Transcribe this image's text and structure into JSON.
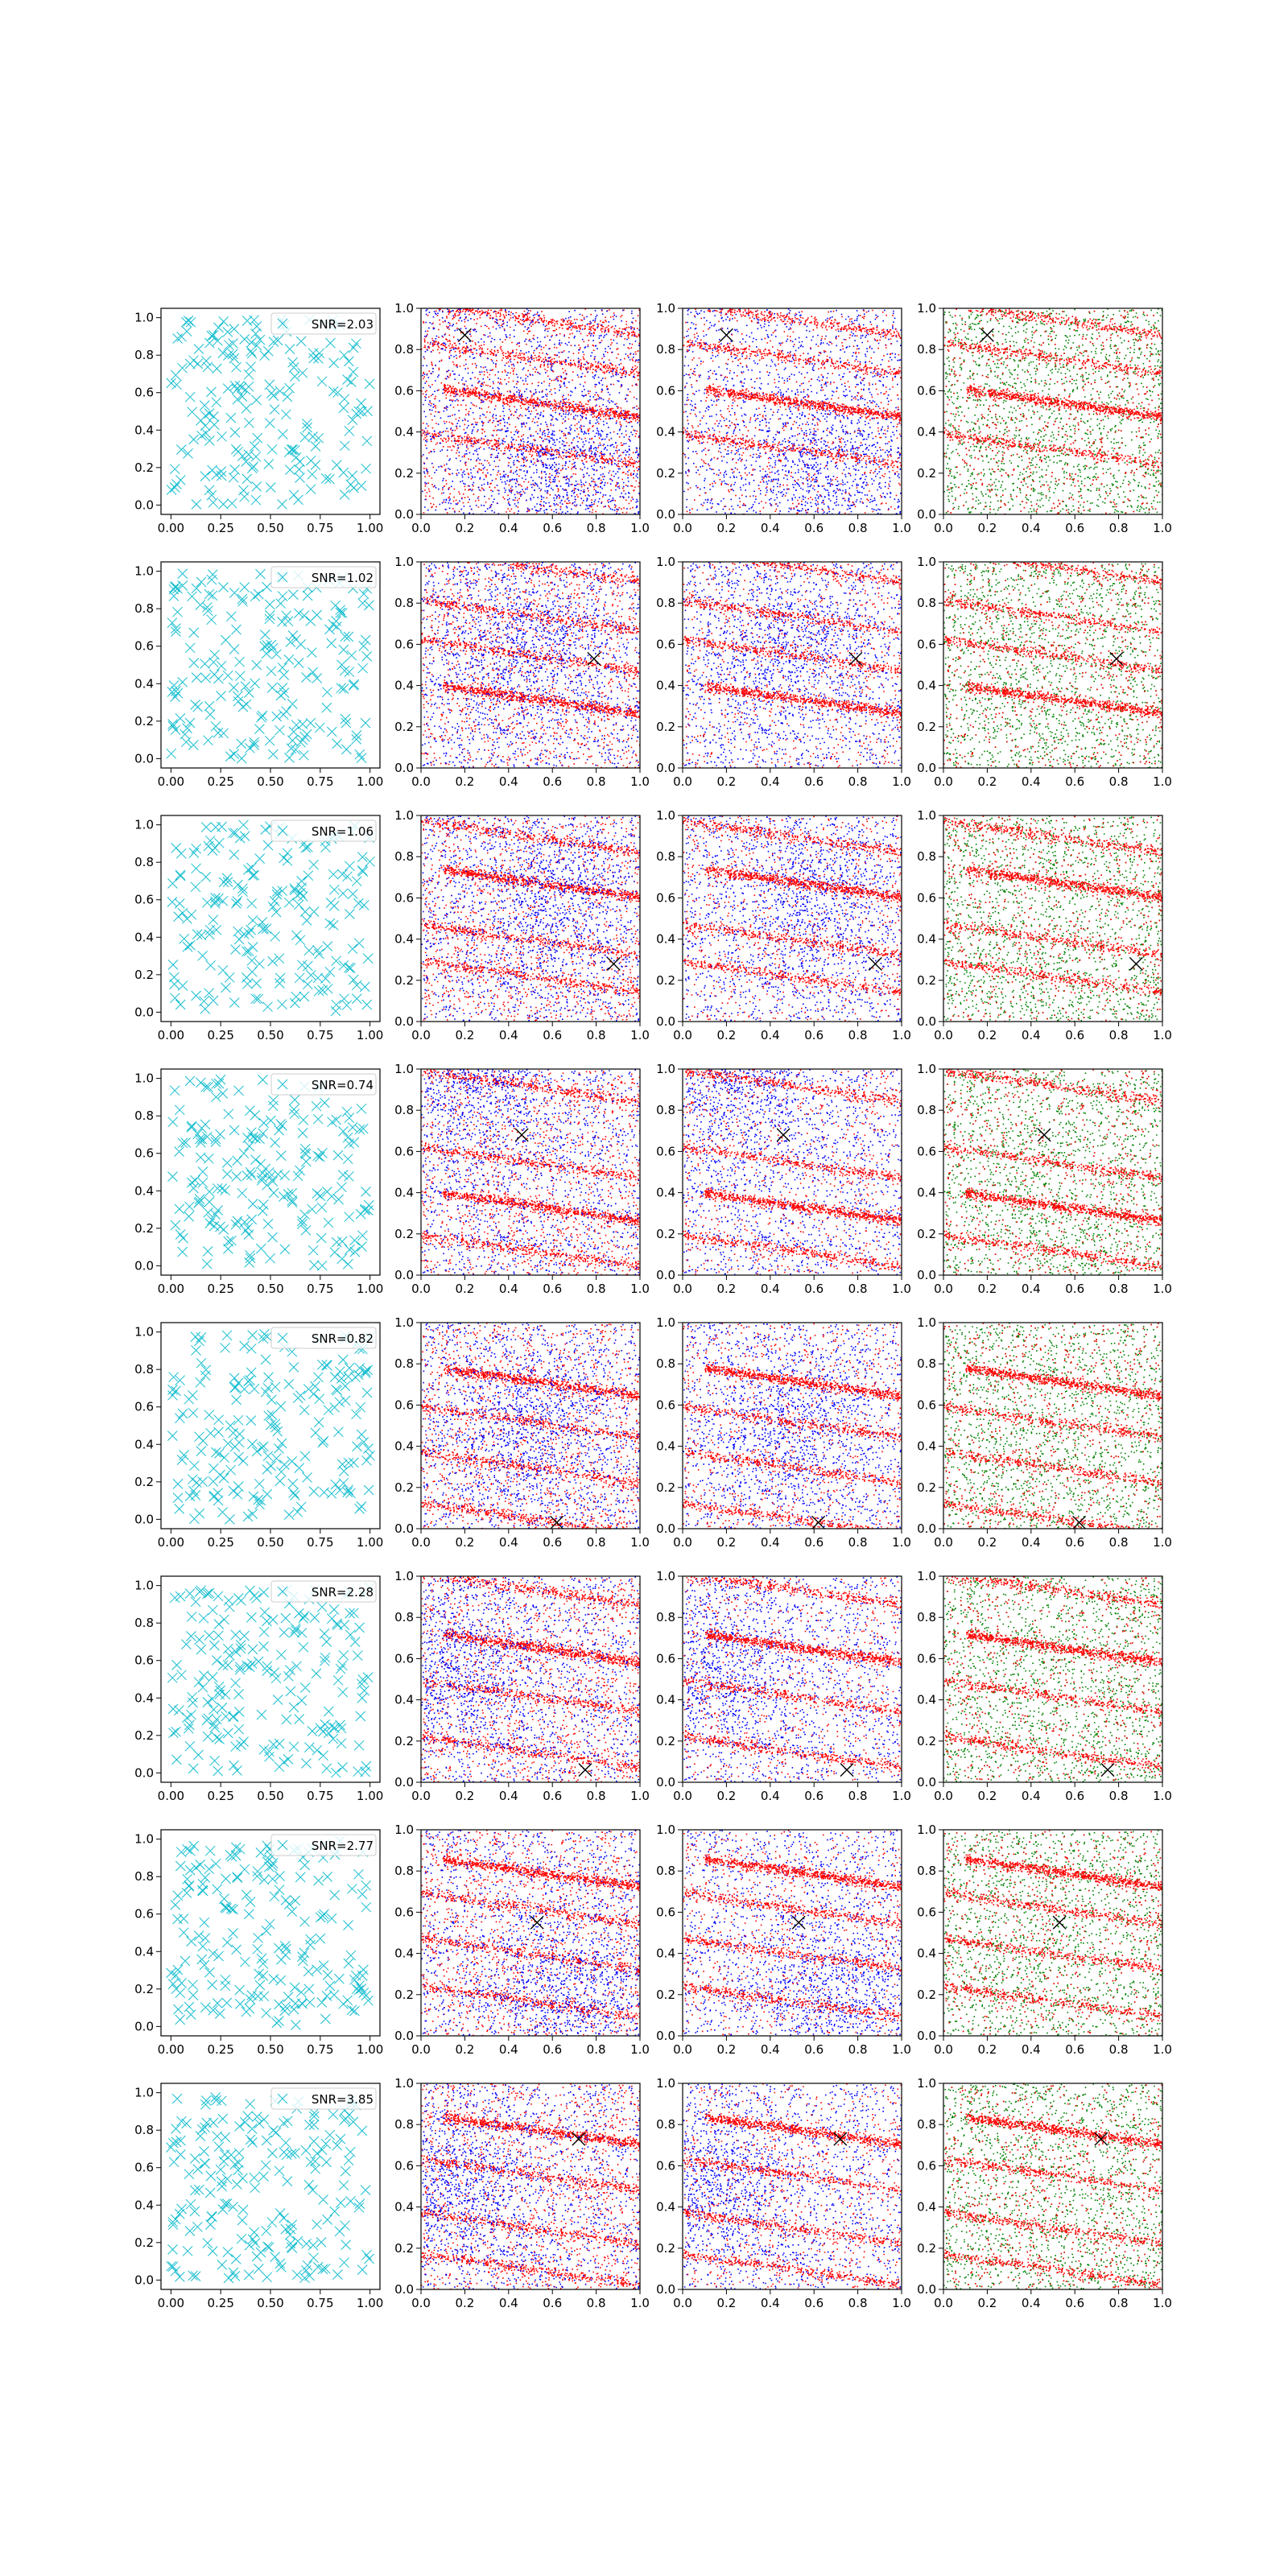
{
  "chart_data": {
    "type": "scatter",
    "layout": "8 rows x 4 columns",
    "tick_labels": {
      "col1_x": [
        "0.00",
        "0.25",
        "0.50",
        "0.75",
        "1.00"
      ],
      "col1_y": [
        "0.0",
        "0.2",
        "0.4",
        "0.6",
        "0.8",
        "1.0"
      ],
      "other_x": [
        "0.0",
        "0.2",
        "0.4",
        "0.6",
        "0.8",
        "1.0"
      ],
      "other_y": [
        "0.0",
        "0.2",
        "0.4",
        "0.6",
        "0.8",
        "1.0"
      ]
    },
    "xlim": [
      0,
      1
    ],
    "ylim": [
      0,
      1
    ],
    "grid": false,
    "colors": {
      "cross": "#17becf",
      "blue": "#0000ff",
      "red": "#ff0000",
      "green": "#008000",
      "marker": "#000000"
    },
    "rows": [
      {
        "snr": "SNR=2.03",
        "marker": [
          0.2,
          0.87
        ],
        "bands": [
          [
            0.55,
            0.18
          ],
          [
            0.95,
            0.12
          ],
          [
            0.32,
            0.12
          ],
          [
            0.76,
            0.12
          ]
        ],
        "blob": [
          0.65,
          0.22
        ]
      },
      {
        "snr": "SNR=1.02",
        "marker": [
          0.79,
          0.53
        ],
        "bands": [
          [
            0.34,
            0.18
          ],
          [
            0.98,
            0.12
          ],
          [
            0.74,
            0.12
          ],
          [
            0.55,
            0.12
          ]
        ],
        "blob": [
          0.5,
          0.6
        ]
      },
      {
        "snr": "SNR=1.06",
        "marker": [
          0.88,
          0.28
        ],
        "bands": [
          [
            0.68,
            0.3
          ],
          [
            0.9,
            0.12
          ],
          [
            0.4,
            0.12
          ],
          [
            0.22,
            0.12
          ]
        ],
        "blob": [
          0.6,
          0.6
        ]
      },
      {
        "snr": "SNR=0.74",
        "marker": [
          0.46,
          0.68
        ],
        "bands": [
          [
            0.34,
            0.16
          ],
          [
            0.92,
            0.16
          ],
          [
            0.55,
            0.12
          ],
          [
            0.12,
            0.12
          ]
        ],
        "blob": [
          0.3,
          0.9
        ]
      },
      {
        "snr": "SNR=0.82",
        "marker": [
          0.62,
          0.03
        ],
        "bands": [
          [
            0.72,
            0.12
          ],
          [
            0.05,
            0.12
          ],
          [
            0.52,
            0.12
          ],
          [
            0.3,
            0.12
          ]
        ],
        "blob": [
          0.5,
          0.5
        ]
      },
      {
        "snr": "SNR=2.28",
        "marker": [
          0.75,
          0.06
        ],
        "bands": [
          [
            0.66,
            0.1
          ],
          [
            0.15,
            0.14
          ],
          [
            0.42,
            0.12
          ],
          [
            0.94,
            0.12
          ]
        ],
        "blob": [
          0.2,
          0.55
        ]
      },
      {
        "snr": "SNR=2.77",
        "marker": [
          0.53,
          0.55
        ],
        "bands": [
          [
            0.8,
            0.25
          ],
          [
            0.62,
            0.12
          ],
          [
            0.4,
            0.12
          ],
          [
            0.17,
            0.12
          ]
        ],
        "blob": [
          0.7,
          0.2
        ]
      },
      {
        "snr": "SNR=3.85",
        "marker": [
          0.72,
          0.73
        ],
        "bands": [
          [
            0.78,
            0.08
          ],
          [
            0.56,
            0.08
          ],
          [
            0.3,
            0.12
          ],
          [
            0.1,
            0.12
          ]
        ],
        "blob": [
          0.2,
          0.5
        ]
      }
    ]
  }
}
